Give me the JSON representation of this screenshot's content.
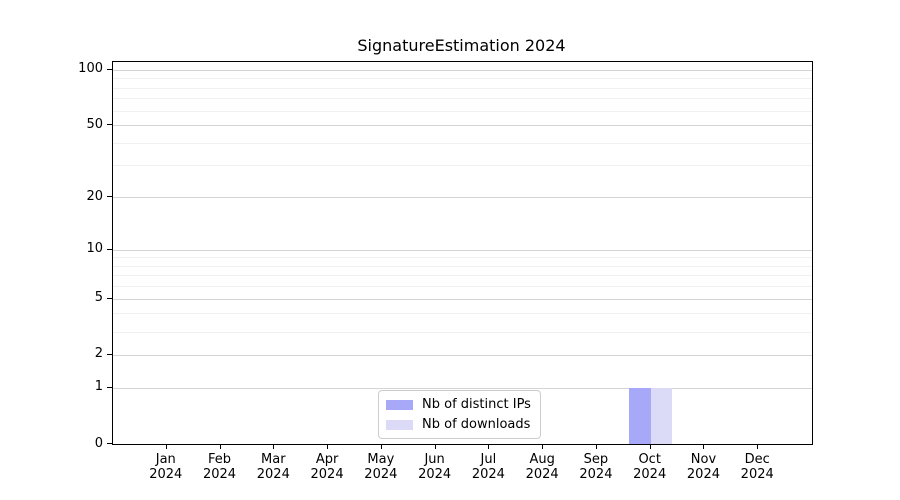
{
  "chart_data": {
    "type": "bar",
    "title": "SignatureEstimation 2024",
    "categories": [
      "Jan",
      "Feb",
      "Mar",
      "Apr",
      "May",
      "Jun",
      "Jul",
      "Aug",
      "Sep",
      "Oct",
      "Nov",
      "Dec"
    ],
    "category_year": "2024",
    "series": [
      {
        "name": "Nb of distinct IPs",
        "color": "#a8a8f8",
        "values": [
          0,
          0,
          0,
          0,
          0,
          0,
          0,
          0,
          0,
          1,
          0,
          0
        ]
      },
      {
        "name": "Nb of downloads",
        "color": "#dbdbf8",
        "values": [
          0,
          0,
          0,
          0,
          0,
          0,
          0,
          0,
          0,
          1,
          0,
          0
        ]
      }
    ],
    "xlabel": "",
    "ylabel": "",
    "y_scale": "log10(1+y)",
    "y_ticks": [
      0,
      1,
      2,
      5,
      10,
      20,
      50,
      100
    ],
    "y_minor_ticks": [
      3,
      4,
      6,
      7,
      8,
      9,
      30,
      40,
      60,
      70,
      80,
      90
    ],
    "ylim": [
      0,
      110
    ],
    "grid": true,
    "legend_position": "lower center"
  },
  "colors": {
    "major_grid": "#d4d4d4",
    "minor_grid": "#f0f0f0",
    "spine": "#000000",
    "background": "#ffffff",
    "legend_border": "#cccccc",
    "text": "#000000"
  }
}
